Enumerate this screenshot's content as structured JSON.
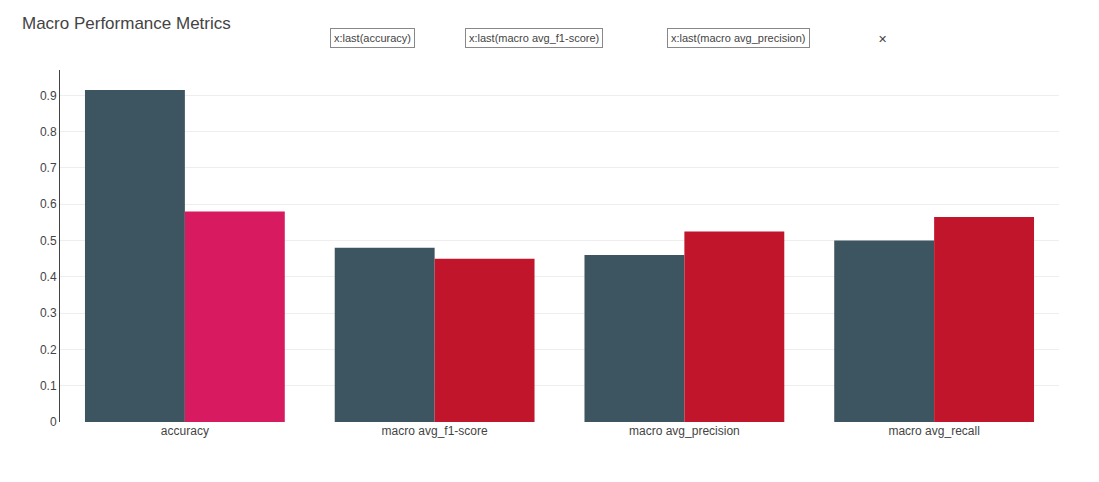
{
  "chart_data": {
    "type": "bar",
    "title": "Macro Performance Metrics",
    "annotations": [
      "x:last(accuracy)",
      "x:last(macro avg_f1-score)",
      "x:last(macro avg_precision)",
      "✕"
    ],
    "categories": [
      "accuracy",
      "macro avg_f1-score",
      "macro avg_precision",
      "macro avg_recall"
    ],
    "series": [
      {
        "color": "#3d5560",
        "values": [
          0.915,
          0.48,
          0.46,
          0.5
        ]
      },
      {
        "colors": [
          "#d81b60",
          "#c0152a",
          "#c0152a",
          "#c0152a"
        ],
        "values": [
          0.58,
          0.45,
          0.525,
          0.565
        ]
      }
    ],
    "ylim": [
      0,
      0.97
    ],
    "yticks": [
      0,
      0.1,
      0.2,
      0.3,
      0.4,
      0.5,
      0.6,
      0.7,
      0.8,
      0.9
    ],
    "grid": true
  }
}
